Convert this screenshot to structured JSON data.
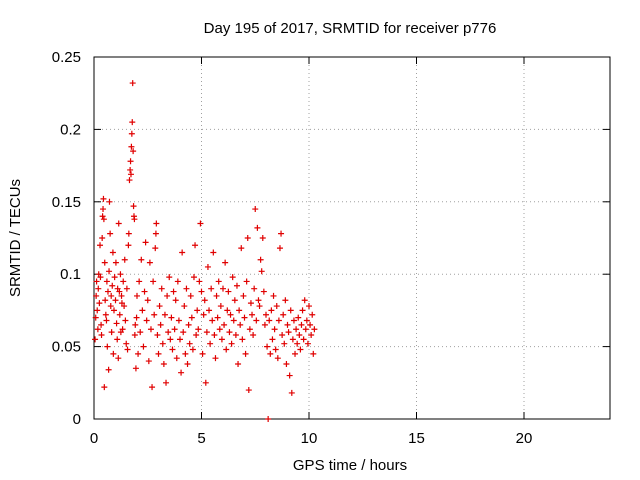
{
  "chart_data": {
    "type": "scatter",
    "title": "Day 195 of 2017, SRMTID for receiver p776",
    "xlabel": "GPS time / hours",
    "ylabel": "SRMTID / TECUs",
    "xlim": [
      0,
      24
    ],
    "ylim": [
      0,
      0.25
    ],
    "xticks": [
      0,
      5,
      10,
      15,
      20
    ],
    "yticks": [
      0,
      0.05,
      0.1,
      0.15,
      0.2,
      0.25
    ],
    "ytick_labels": [
      "0",
      "0.05",
      "0.1",
      "0.15",
      "0.2",
      "0.25"
    ],
    "grid": true,
    "marker": "+",
    "series": [
      {
        "name": "SRMTID",
        "color": "#e00000",
        "points": [
          [
            0.05,
            0.055
          ],
          [
            0.08,
            0.07
          ],
          [
            0.1,
            0.085
          ],
          [
            0.12,
            0.095
          ],
          [
            0.15,
            0.075
          ],
          [
            0.18,
            0.062
          ],
          [
            0.2,
            0.09
          ],
          [
            0.22,
            0.1
          ],
          [
            0.25,
            0.08
          ],
          [
            0.28,
            0.12
          ],
          [
            0.3,
            0.098
          ],
          [
            0.33,
            0.065
          ],
          [
            0.35,
            0.058
          ],
          [
            0.38,
            0.125
          ],
          [
            0.4,
            0.14
          ],
          [
            0.42,
            0.145
          ],
          [
            0.44,
            0.152
          ],
          [
            0.46,
            0.138
          ],
          [
            0.48,
            0.022
          ],
          [
            0.5,
            0.108
          ],
          [
            0.52,
            0.082
          ],
          [
            0.55,
            0.072
          ],
          [
            0.58,
            0.068
          ],
          [
            0.6,
            0.095
          ],
          [
            0.62,
            0.05
          ],
          [
            0.65,
            0.088
          ],
          [
            0.68,
            0.034
          ],
          [
            0.7,
            0.102
          ],
          [
            0.72,
            0.15
          ],
          [
            0.75,
            0.128
          ],
          [
            0.78,
            0.078
          ],
          [
            0.8,
            0.085
          ],
          [
            0.82,
            0.06
          ],
          [
            0.85,
            0.092
          ],
          [
            0.88,
            0.115
          ],
          [
            0.9,
            0.045
          ],
          [
            0.93,
            0.075
          ],
          [
            0.96,
            0.098
          ],
          [
            1.0,
            0.082
          ],
          [
            1.02,
            0.108
          ],
          [
            1.05,
            0.066
          ],
          [
            1.08,
            0.055
          ],
          [
            1.1,
            0.09
          ],
          [
            1.13,
            0.042
          ],
          [
            1.15,
            0.135
          ],
          [
            1.18,
            0.088
          ],
          [
            1.2,
            0.072
          ],
          [
            1.23,
            0.1
          ],
          [
            1.25,
            0.06
          ],
          [
            1.28,
            0.085
          ],
          [
            1.3,
            0.08
          ],
          [
            1.33,
            0.062
          ],
          [
            1.36,
            0.095
          ],
          [
            1.4,
            0.078
          ],
          [
            1.43,
            0.11
          ],
          [
            1.46,
            0.068
          ],
          [
            1.5,
            0.052
          ],
          [
            1.53,
            0.09
          ],
          [
            1.56,
            0.048
          ],
          [
            1.6,
            0.12
          ],
          [
            1.62,
            0.128
          ],
          [
            1.65,
            0.165
          ],
          [
            1.68,
            0.172
          ],
          [
            1.7,
            0.178
          ],
          [
            1.72,
            0.169
          ],
          [
            1.74,
            0.188
          ],
          [
            1.76,
            0.197
          ],
          [
            1.78,
            0.205
          ],
          [
            1.8,
            0.232
          ],
          [
            1.82,
            0.185
          ],
          [
            1.84,
            0.147
          ],
          [
            1.86,
            0.14
          ],
          [
            1.88,
            0.138
          ],
          [
            1.9,
            0.058
          ],
          [
            1.92,
            0.065
          ],
          [
            1.95,
            0.035
          ],
          [
            1.98,
            0.07
          ],
          [
            2.0,
            0.085
          ],
          [
            2.05,
            0.045
          ],
          [
            2.1,
            0.095
          ],
          [
            2.15,
            0.06
          ],
          [
            2.2,
            0.11
          ],
          [
            2.25,
            0.075
          ],
          [
            2.3,
            0.05
          ],
          [
            2.35,
            0.088
          ],
          [
            2.4,
            0.122
          ],
          [
            2.45,
            0.068
          ],
          [
            2.5,
            0.082
          ],
          [
            2.55,
            0.04
          ],
          [
            2.6,
            0.108
          ],
          [
            2.65,
            0.062
          ],
          [
            2.7,
            0.022
          ],
          [
            2.75,
            0.095
          ],
          [
            2.8,
            0.072
          ],
          [
            2.85,
            0.118
          ],
          [
            2.88,
            0.128
          ],
          [
            2.9,
            0.135
          ],
          [
            2.95,
            0.058
          ],
          [
            3.0,
            0.045
          ],
          [
            3.05,
            0.078
          ],
          [
            3.1,
            0.065
          ],
          [
            3.15,
            0.09
          ],
          [
            3.2,
            0.052
          ],
          [
            3.25,
            0.038
          ],
          [
            3.3,
            0.072
          ],
          [
            3.35,
            0.025
          ],
          [
            3.4,
            0.085
          ],
          [
            3.45,
            0.06
          ],
          [
            3.5,
            0.098
          ],
          [
            3.55,
            0.055
          ],
          [
            3.6,
            0.07
          ],
          [
            3.65,
            0.048
          ],
          [
            3.7,
            0.088
          ],
          [
            3.75,
            0.062
          ],
          [
            3.8,
            0.082
          ],
          [
            3.85,
            0.042
          ],
          [
            3.9,
            0.095
          ],
          [
            3.95,
            0.068
          ],
          [
            4.0,
            0.055
          ],
          [
            4.05,
            0.032
          ],
          [
            4.1,
            0.115
          ],
          [
            4.15,
            0.06
          ],
          [
            4.2,
            0.078
          ],
          [
            4.25,
            0.045
          ],
          [
            4.3,
            0.09
          ],
          [
            4.35,
            0.038
          ],
          [
            4.4,
            0.065
          ],
          [
            4.45,
            0.052
          ],
          [
            4.5,
            0.085
          ],
          [
            4.55,
            0.07
          ],
          [
            4.6,
            0.048
          ],
          [
            4.65,
            0.098
          ],
          [
            4.7,
            0.12
          ],
          [
            4.75,
            0.058
          ],
          [
            4.8,
            0.075
          ],
          [
            4.85,
            0.062
          ],
          [
            4.9,
            0.095
          ],
          [
            4.95,
            0.135
          ],
          [
            5.0,
            0.088
          ],
          [
            5.05,
            0.045
          ],
          [
            5.1,
            0.072
          ],
          [
            5.15,
            0.082
          ],
          [
            5.2,
            0.025
          ],
          [
            5.25,
            0.06
          ],
          [
            5.3,
            0.105
          ],
          [
            5.35,
            0.075
          ],
          [
            5.4,
            0.052
          ],
          [
            5.45,
            0.09
          ],
          [
            5.5,
            0.068
          ],
          [
            5.55,
            0.115
          ],
          [
            5.6,
            0.058
          ],
          [
            5.65,
            0.042
          ],
          [
            5.7,
            0.085
          ],
          [
            5.75,
            0.07
          ],
          [
            5.8,
            0.095
          ],
          [
            5.85,
            0.062
          ],
          [
            5.9,
            0.078
          ],
          [
            5.95,
            0.055
          ],
          [
            6.0,
            0.09
          ],
          [
            6.05,
            0.065
          ],
          [
            6.1,
            0.108
          ],
          [
            6.15,
            0.048
          ],
          [
            6.2,
            0.075
          ],
          [
            6.25,
            0.088
          ],
          [
            6.3,
            0.06
          ],
          [
            6.35,
            0.072
          ],
          [
            6.4,
            0.052
          ],
          [
            6.45,
            0.098
          ],
          [
            6.5,
            0.068
          ],
          [
            6.55,
            0.082
          ],
          [
            6.6,
            0.058
          ],
          [
            6.65,
            0.092
          ],
          [
            6.7,
            0.038
          ],
          [
            6.75,
            0.075
          ],
          [
            6.8,
            0.065
          ],
          [
            6.85,
            0.118
          ],
          [
            6.9,
            0.055
          ],
          [
            6.95,
            0.085
          ],
          [
            7.0,
            0.07
          ],
          [
            7.05,
            0.045
          ],
          [
            7.1,
            0.095
          ],
          [
            7.15,
            0.125
          ],
          [
            7.2,
            0.02
          ],
          [
            7.25,
            0.062
          ],
          [
            7.3,
            0.08
          ],
          [
            7.35,
            0.072
          ],
          [
            7.4,
            0.058
          ],
          [
            7.45,
            0.09
          ],
          [
            7.5,
            0.145
          ],
          [
            7.55,
            0.068
          ],
          [
            7.6,
            0.132
          ],
          [
            7.65,
            0.082
          ],
          [
            7.7,
            0.078
          ],
          [
            7.75,
            0.11
          ],
          [
            7.8,
            0.102
          ],
          [
            7.85,
            0.125
          ],
          [
            7.9,
            0.088
          ],
          [
            7.95,
            0.065
          ],
          [
            8.0,
            0.072
          ],
          [
            8.05,
            0.05
          ],
          [
            8.1,
            0.0
          ],
          [
            8.15,
            0.068
          ],
          [
            8.2,
            0.045
          ],
          [
            8.25,
            0.075
          ],
          [
            8.3,
            0.055
          ],
          [
            8.35,
            0.085
          ],
          [
            8.4,
            0.062
          ],
          [
            8.45,
            0.048
          ],
          [
            8.5,
            0.078
          ],
          [
            8.55,
            0.042
          ],
          [
            8.6,
            0.068
          ],
          [
            8.65,
            0.118
          ],
          [
            8.7,
            0.128
          ],
          [
            8.75,
            0.058
          ],
          [
            8.8,
            0.072
          ],
          [
            8.85,
            0.052
          ],
          [
            8.9,
            0.082
          ],
          [
            8.95,
            0.038
          ],
          [
            9.0,
            0.065
          ],
          [
            9.05,
            0.06
          ],
          [
            9.1,
            0.03
          ],
          [
            9.15,
            0.075
          ],
          [
            9.2,
            0.018
          ],
          [
            9.25,
            0.055
          ],
          [
            9.3,
            0.068
          ],
          [
            9.35,
            0.045
          ],
          [
            9.4,
            0.062
          ],
          [
            9.45,
            0.052
          ],
          [
            9.5,
            0.07
          ],
          [
            9.55,
            0.058
          ],
          [
            9.6,
            0.048
          ],
          [
            9.65,
            0.065
          ],
          [
            9.7,
            0.075
          ],
          [
            9.75,
            0.055
          ],
          [
            9.8,
            0.082
          ],
          [
            9.85,
            0.062
          ],
          [
            9.9,
            0.068
          ],
          [
            9.95,
            0.052
          ],
          [
            10.0,
            0.078
          ],
          [
            10.05,
            0.065
          ],
          [
            10.1,
            0.058
          ],
          [
            10.15,
            0.072
          ],
          [
            10.2,
            0.045
          ],
          [
            10.25,
            0.062
          ]
        ]
      }
    ]
  }
}
